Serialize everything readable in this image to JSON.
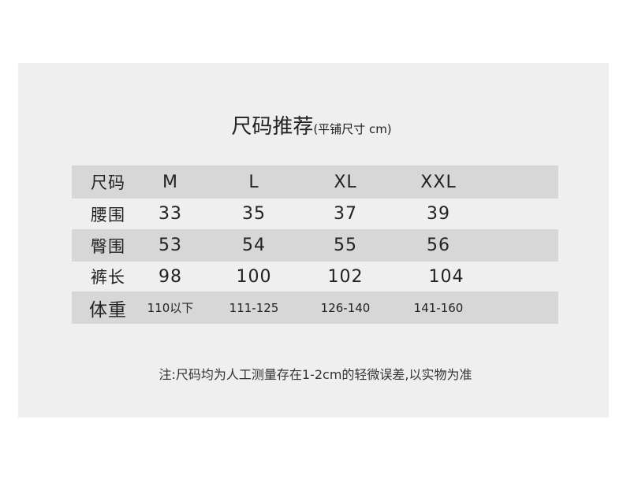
{
  "title": "尺码推荐",
  "subtitle": "(平铺尺寸 cm)",
  "table": {
    "header": [
      "尺码",
      "M",
      "L",
      "XL",
      "XXL"
    ],
    "rows": [
      [
        "腰围",
        "33",
        "35",
        "37",
        "39"
      ],
      [
        "臀围",
        "53",
        "54",
        "55",
        "56"
      ],
      [
        "裤长",
        "98",
        "100",
        "102",
        "104"
      ],
      [
        "体重",
        "110以下",
        "111-125",
        "126-140",
        "141-160"
      ]
    ]
  },
  "note": "注:尺码均为人工测量存在1-2cm的轻微误差,以实物为准",
  "colors": {
    "panel": "#efefef",
    "stripe": "#d7d7d7"
  }
}
